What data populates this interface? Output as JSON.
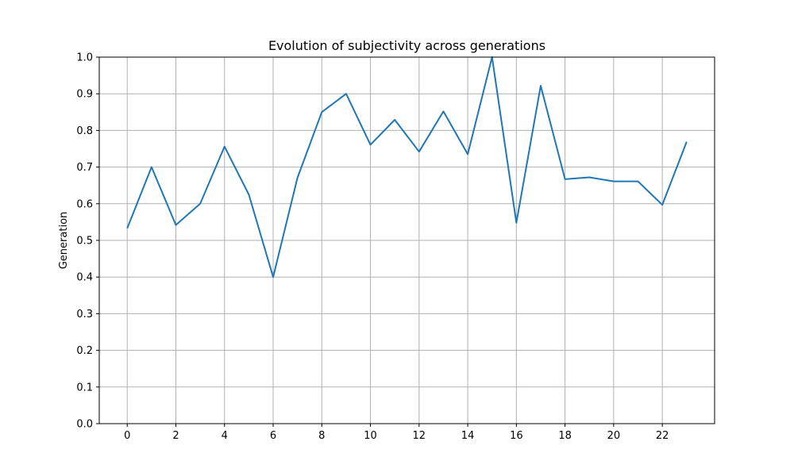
{
  "chart_data": {
    "type": "line",
    "title": "Evolution of subjectivity across generations",
    "xlabel": "",
    "ylabel": "Generation",
    "xlim": [
      -1.15,
      24.15
    ],
    "ylim": [
      0,
      1.0
    ],
    "grid": true,
    "x_ticks": [
      0,
      2,
      4,
      6,
      8,
      10,
      12,
      14,
      16,
      18,
      20,
      22
    ],
    "y_ticks": [
      0.0,
      0.1,
      0.2,
      0.3,
      0.4,
      0.5,
      0.6,
      0.7,
      0.8,
      0.9,
      1.0
    ],
    "y_tick_labels": [
      "0.0",
      "0.1",
      "0.2",
      "0.3",
      "0.4",
      "0.5",
      "0.6",
      "0.7",
      "0.8",
      "0.9",
      "1.0"
    ],
    "series": [
      {
        "color": "#1f77b4",
        "x": [
          0,
          1,
          2,
          3,
          4,
          5,
          6,
          7,
          8,
          9,
          10,
          11,
          12,
          13,
          14,
          15,
          16,
          17,
          18,
          19,
          20,
          21,
          22,
          23
        ],
        "values": [
          0.533,
          0.7,
          0.542,
          0.6,
          0.756,
          0.625,
          0.4,
          0.671,
          0.85,
          0.9,
          0.761,
          0.829,
          0.742,
          0.852,
          0.735,
          1.0,
          0.548,
          0.922,
          0.667,
          0.672,
          0.661,
          0.661,
          0.597,
          0.769
        ]
      }
    ]
  }
}
